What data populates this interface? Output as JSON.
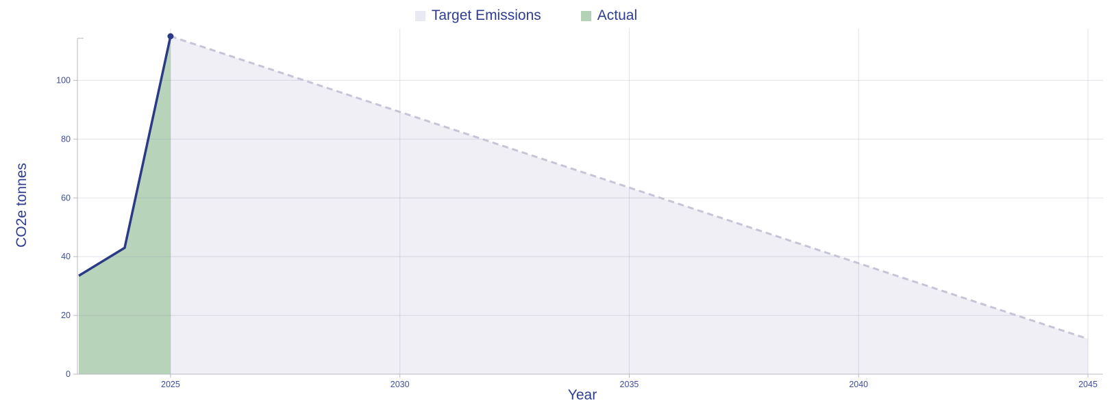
{
  "background": "#ffffff",
  "legend": {
    "items": [
      {
        "label": "Target Emissions",
        "color": "#e9e9f2"
      },
      {
        "label": "Actual",
        "color": "#b3d2b8"
      }
    ]
  },
  "chart_data": {
    "type": "area",
    "title": "",
    "xlabel": "Year",
    "ylabel": "CO2e tonnes",
    "xlim": [
      2023,
      2045
    ],
    "ylim": [
      0,
      115
    ],
    "x_ticks": [
      2025,
      2030,
      2035,
      2040,
      2045
    ],
    "y_ticks": [
      0,
      20,
      40,
      60,
      80,
      100
    ],
    "grid": true,
    "legend_position": "top-center",
    "series": [
      {
        "name": "Target Emissions",
        "style": "dashed-line-area",
        "fill_color": "#efeff5",
        "line_color": "#c5c5d6",
        "line_dash": "9 6",
        "marker_last_point": false,
        "points": [
          [
            2025,
            115
          ],
          [
            2045,
            12
          ]
        ]
      },
      {
        "name": "Actual",
        "style": "solid-line-area",
        "fill_color": "#b7d4bb",
        "line_color": "#2b3a87",
        "line_dash": "",
        "marker_last_point": true,
        "points": [
          [
            2023,
            33.5
          ],
          [
            2024,
            43
          ],
          [
            2025,
            115
          ]
        ]
      }
    ],
    "colors": {
      "grid_line": "rgba(125,125,150,0.22)",
      "axis_line": "#b9b9c1",
      "tick_label": "#3d4c9e",
      "axis_title": "#2e3d90",
      "legend_text": "#2e3d90",
      "marker": "#2b3a87"
    }
  }
}
